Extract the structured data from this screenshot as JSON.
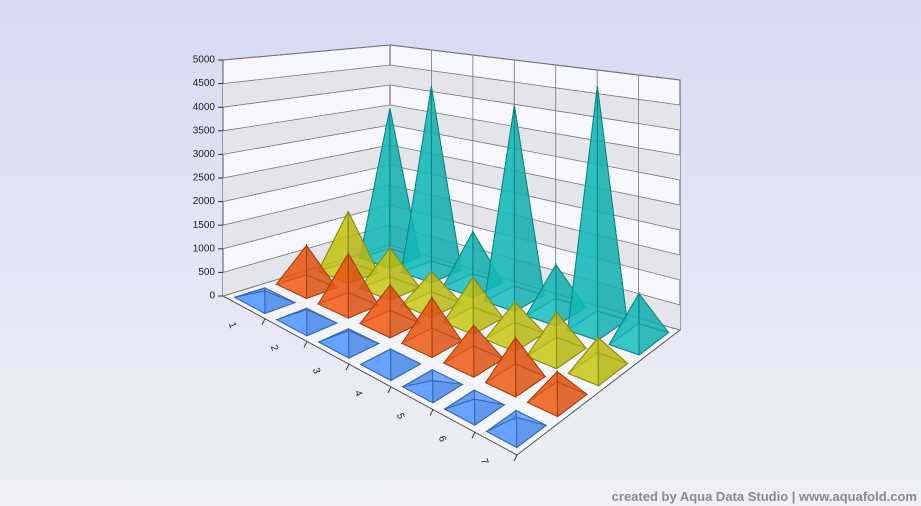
{
  "chart_data": {
    "type": "pyramid3d",
    "categories": [
      "1",
      "2",
      "3",
      "4",
      "5",
      "6",
      "7"
    ],
    "series": [
      {
        "color": "#4d94ff",
        "values": [
          200,
          250,
          250,
          300,
          100,
          150,
          200
        ]
      },
      {
        "color": "#f05a14",
        "values": [
          900,
          1100,
          800,
          900,
          700,
          800,
          500
        ]
      },
      {
        "color": "#c8c814",
        "values": [
          1400,
          900,
          700,
          900,
          700,
          800,
          600
        ]
      },
      {
        "color": "#14bebe",
        "values": [
          3600,
          4300,
          1200,
          4200,
          1000,
          4900,
          900
        ]
      }
    ],
    "ylim": [
      0,
      5000
    ],
    "yticks": [
      0,
      500,
      1000,
      1500,
      2000,
      2500,
      3000,
      3500,
      4000,
      4500,
      5000
    ],
    "grid": true
  },
  "footer": "created by Aqua Data Studio | www.aquafold.com"
}
